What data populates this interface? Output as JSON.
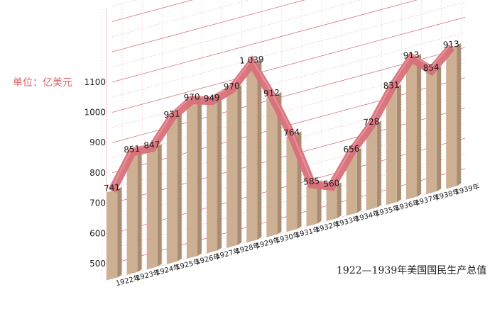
{
  "chart_data": {
    "type": "bar",
    "title": "1922—1939年美国国民生产总值",
    "unit_label": "单位：亿美元",
    "categories": [
      "1922年",
      "1923年",
      "1924年",
      "1925年",
      "1926年",
      "1927年",
      "1928年",
      "1929年",
      "1930年",
      "1931年",
      "1932年",
      "1933年",
      "1934年",
      "1935年",
      "1936年",
      "1937年",
      "1938年",
      "1939年"
    ],
    "values": [
      741,
      851,
      847,
      931,
      970,
      949,
      970,
      1039,
      912,
      764,
      585,
      560,
      656,
      728,
      831,
      913,
      854,
      913
    ],
    "value_labels": [
      "741",
      "851",
      "847",
      "931",
      "970",
      "949",
      "970",
      "1 039",
      "912",
      "764",
      "585",
      "560",
      "656",
      "728",
      "831",
      "913",
      "854",
      "913"
    ],
    "y_ticks": [
      "500",
      "600",
      "700",
      "800",
      "900",
      "1000",
      "1100"
    ],
    "ylim": [
      450,
      1100
    ],
    "grid": true,
    "colors": {
      "bar": "#cdb093",
      "bar_side": "#a88d72",
      "line": "#d97079",
      "grid": "#c9606a",
      "unit": "#d8606a"
    }
  }
}
